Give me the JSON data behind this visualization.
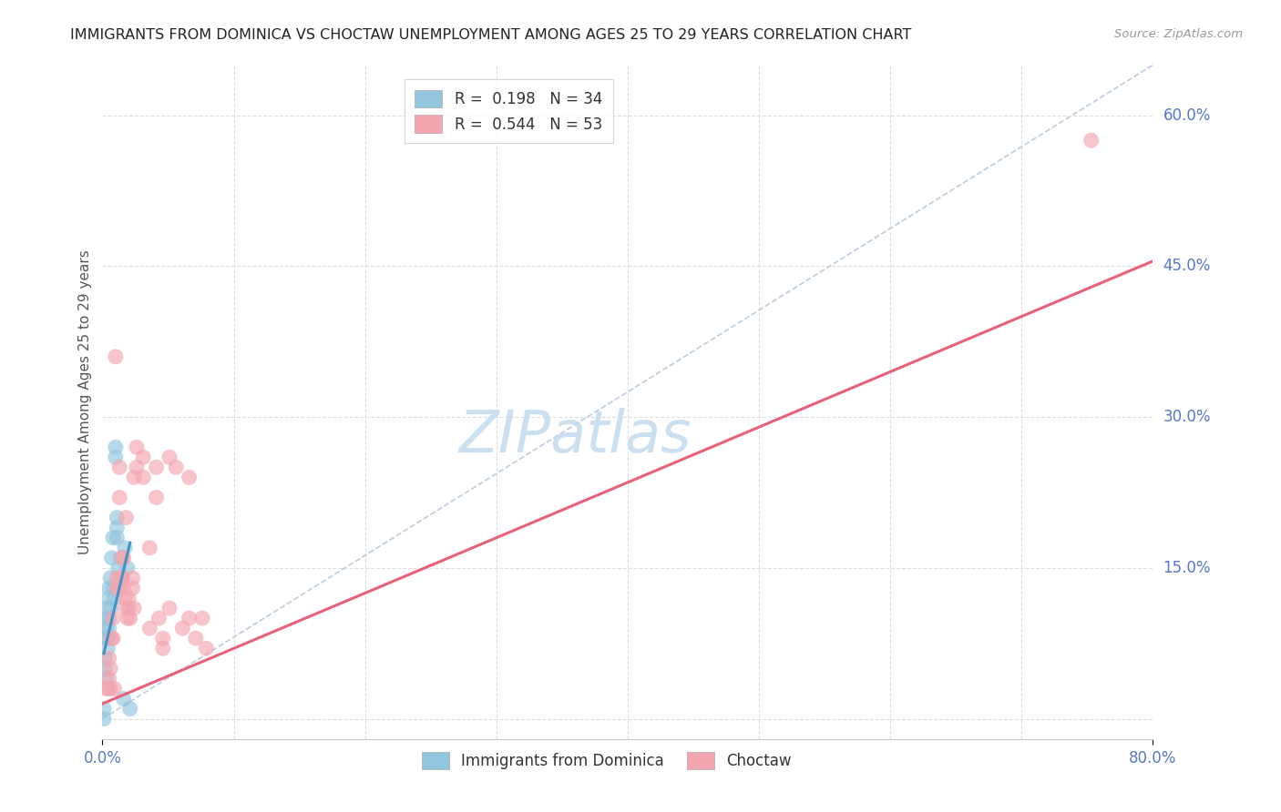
{
  "title": "IMMIGRANTS FROM DOMINICA VS CHOCTAW UNEMPLOYMENT AMONG AGES 25 TO 29 YEARS CORRELATION CHART",
  "source": "Source: ZipAtlas.com",
  "ylabel": "Unemployment Among Ages 25 to 29 years",
  "xlim": [
    0.0,
    0.8
  ],
  "ylim": [
    -0.02,
    0.65
  ],
  "ytick_positions": [
    0.0,
    0.15,
    0.3,
    0.45,
    0.6
  ],
  "ytick_labels_right": [
    "0.0%",
    "15.0%",
    "30.0%",
    "45.0%",
    "60.0%"
  ],
  "xtick_positions": [
    0.0,
    0.8
  ],
  "xtick_labels": [
    "0.0%",
    "80.0%"
  ],
  "watermark_text": "ZIPatlas",
  "dominica_color": "#92c5de",
  "choctaw_color": "#f4a5b0",
  "dominica_line_color": "#4393c3",
  "choctaw_line_color": "#e8607a",
  "dashed_line_color": "#bbccdd",
  "grid_color": "#dddddd",
  "label_color": "#5577cc",
  "title_color": "#222222",
  "source_color": "#999999",
  "dominica_R": 0.198,
  "dominica_N": 34,
  "choctaw_R": 0.544,
  "choctaw_N": 53,
  "dominica_scatter": [
    [
      0.001,
      0.0
    ],
    [
      0.001,
      0.01
    ],
    [
      0.002,
      0.05
    ],
    [
      0.002,
      0.06
    ],
    [
      0.003,
      0.08
    ],
    [
      0.003,
      0.09
    ],
    [
      0.003,
      0.1
    ],
    [
      0.003,
      0.11
    ],
    [
      0.003,
      0.04
    ],
    [
      0.004,
      0.12
    ],
    [
      0.004,
      0.08
    ],
    [
      0.004,
      0.07
    ],
    [
      0.005,
      0.1
    ],
    [
      0.005,
      0.09
    ],
    [
      0.005,
      0.13
    ],
    [
      0.006,
      0.14
    ],
    [
      0.006,
      0.11
    ],
    [
      0.007,
      0.16
    ],
    [
      0.008,
      0.18
    ],
    [
      0.008,
      0.13
    ],
    [
      0.009,
      0.12
    ],
    [
      0.01,
      0.27
    ],
    [
      0.01,
      0.26
    ],
    [
      0.011,
      0.19
    ],
    [
      0.011,
      0.2
    ],
    [
      0.011,
      0.18
    ],
    [
      0.012,
      0.15
    ],
    [
      0.013,
      0.13
    ],
    [
      0.014,
      0.16
    ],
    [
      0.015,
      0.14
    ],
    [
      0.016,
      0.02
    ],
    [
      0.017,
      0.17
    ],
    [
      0.019,
      0.15
    ],
    [
      0.021,
      0.01
    ]
  ],
  "choctaw_scatter": [
    [
      0.003,
      0.03
    ],
    [
      0.004,
      0.03
    ],
    [
      0.005,
      0.04
    ],
    [
      0.005,
      0.06
    ],
    [
      0.006,
      0.03
    ],
    [
      0.006,
      0.05
    ],
    [
      0.007,
      0.08
    ],
    [
      0.008,
      0.08
    ],
    [
      0.008,
      0.1
    ],
    [
      0.009,
      0.03
    ],
    [
      0.01,
      0.36
    ],
    [
      0.011,
      0.14
    ],
    [
      0.011,
      0.13
    ],
    [
      0.012,
      0.13
    ],
    [
      0.013,
      0.25
    ],
    [
      0.013,
      0.22
    ],
    [
      0.014,
      0.14
    ],
    [
      0.015,
      0.14
    ],
    [
      0.015,
      0.16
    ],
    [
      0.016,
      0.16
    ],
    [
      0.016,
      0.13
    ],
    [
      0.017,
      0.12
    ],
    [
      0.017,
      0.11
    ],
    [
      0.018,
      0.2
    ],
    [
      0.019,
      0.1
    ],
    [
      0.02,
      0.11
    ],
    [
      0.02,
      0.12
    ],
    [
      0.021,
      0.1
    ],
    [
      0.023,
      0.14
    ],
    [
      0.023,
      0.13
    ],
    [
      0.024,
      0.11
    ],
    [
      0.024,
      0.24
    ],
    [
      0.026,
      0.25
    ],
    [
      0.026,
      0.27
    ],
    [
      0.031,
      0.26
    ],
    [
      0.031,
      0.24
    ],
    [
      0.036,
      0.17
    ],
    [
      0.036,
      0.09
    ],
    [
      0.041,
      0.25
    ],
    [
      0.041,
      0.22
    ],
    [
      0.043,
      0.1
    ],
    [
      0.046,
      0.07
    ],
    [
      0.046,
      0.08
    ],
    [
      0.051,
      0.26
    ],
    [
      0.051,
      0.11
    ],
    [
      0.056,
      0.25
    ],
    [
      0.061,
      0.09
    ],
    [
      0.066,
      0.1
    ],
    [
      0.066,
      0.24
    ],
    [
      0.071,
      0.08
    ],
    [
      0.076,
      0.1
    ],
    [
      0.079,
      0.07
    ],
    [
      0.753,
      0.575
    ]
  ],
  "dominica_line": {
    "x": [
      0.001,
      0.021
    ],
    "y": [
      0.065,
      0.175
    ]
  },
  "choctaw_line": {
    "x": [
      0.0,
      0.8
    ],
    "y": [
      0.015,
      0.455
    ]
  },
  "dashed_line": {
    "x": [
      0.0,
      0.8
    ],
    "y": [
      0.0,
      0.65
    ]
  }
}
